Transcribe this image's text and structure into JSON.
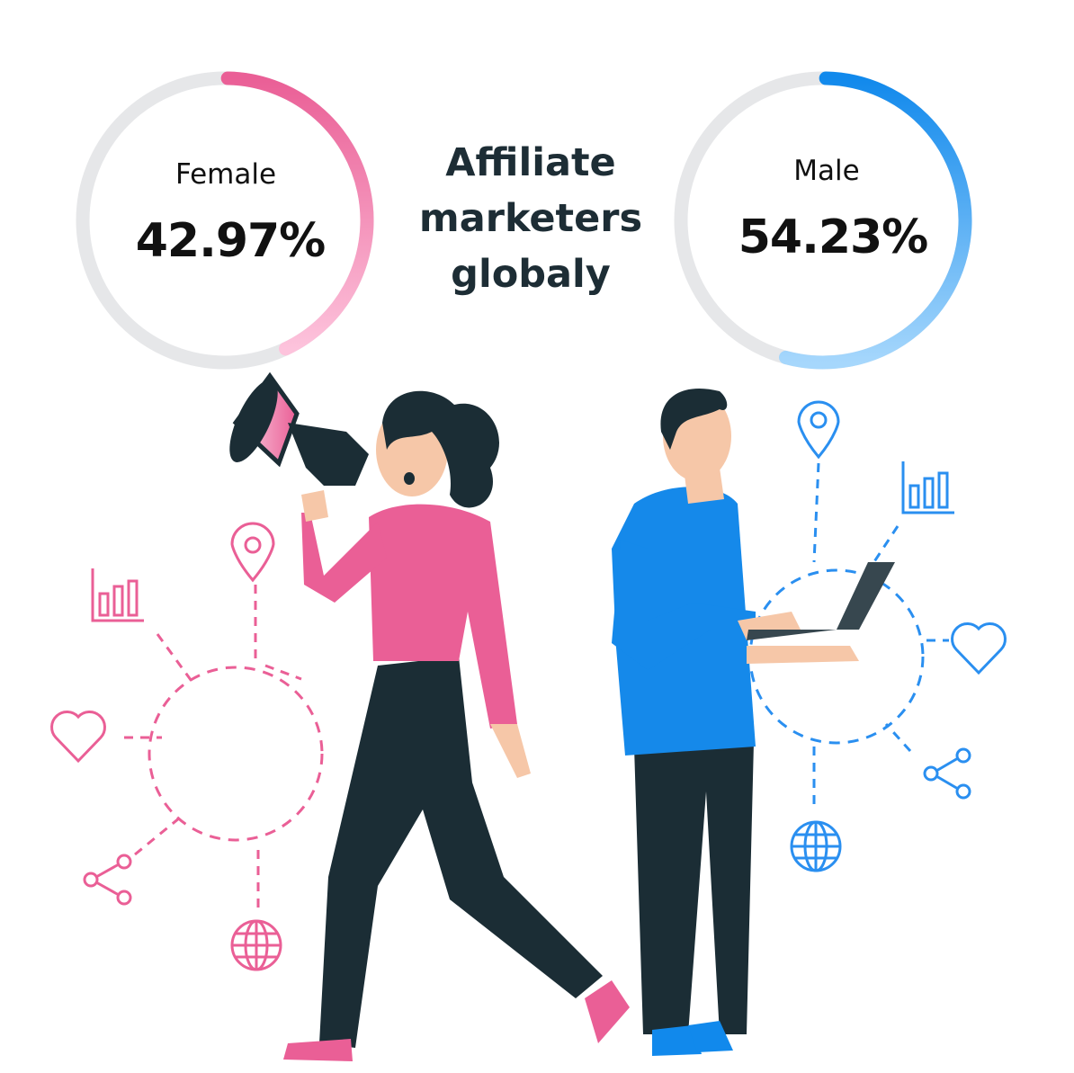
{
  "title": "Affiliate marketers globaly",
  "colors": {
    "female": "#ea5f96",
    "female_light": "#fdc3dc",
    "male": "#1189ec",
    "male_light": "#a6d7fc",
    "track": "#e6e7e9",
    "text": "#1d2d35"
  },
  "chart_data": [
    {
      "type": "donut",
      "label": "Female",
      "value": 42.97,
      "display": "42.97%",
      "max": 100
    },
    {
      "type": "donut",
      "label": "Male",
      "value": 54.23,
      "display": "54.23%",
      "max": 100
    }
  ],
  "icons": {
    "female_network": [
      "location-pin-icon",
      "bar-chart-icon",
      "heart-icon",
      "share-icon",
      "globe-icon"
    ],
    "male_network": [
      "location-pin-icon",
      "bar-chart-icon",
      "heart-icon",
      "share-icon",
      "globe-icon"
    ]
  }
}
